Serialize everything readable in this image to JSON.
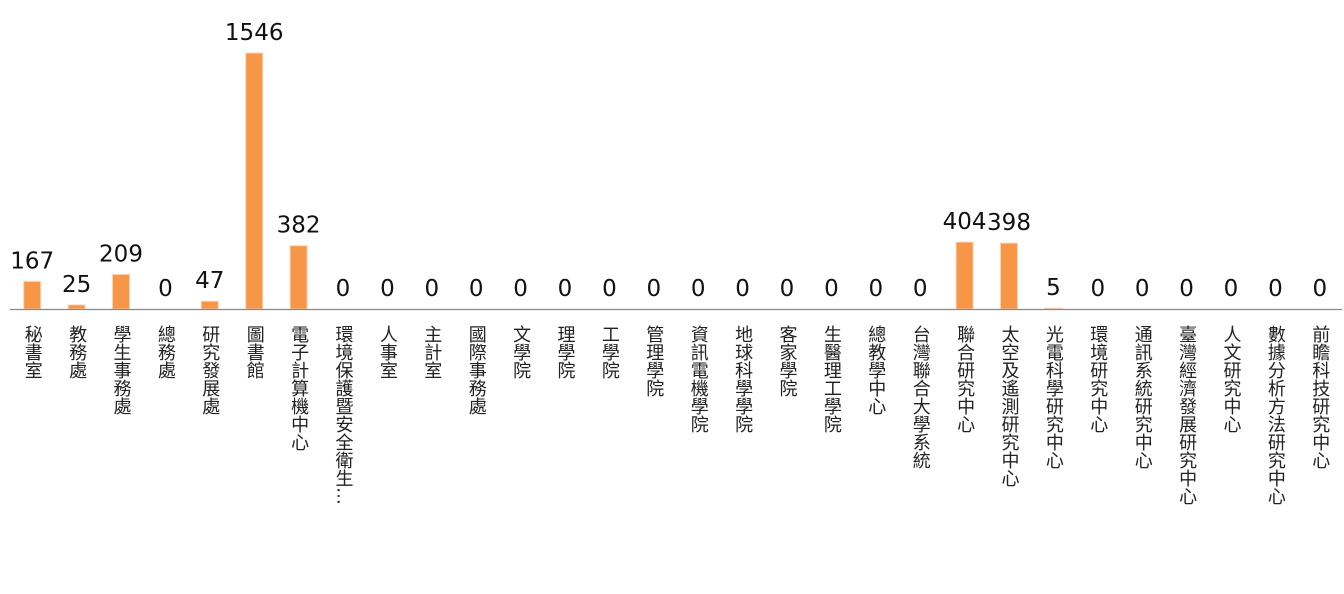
{
  "chart_data": {
    "type": "bar",
    "title": "",
    "xlabel": "",
    "ylabel": "",
    "ylim": [
      0,
      1546
    ],
    "grid": false,
    "legend": "none",
    "bar_color": "#F79646",
    "categories": [
      "秘書室",
      "教務處",
      "學生事務處",
      "總務處",
      "研究發展處",
      "圖書館",
      "電子計算機中心",
      "環境保護暨安全衛生…",
      "人事室",
      "主計室",
      "國際事務處",
      "文學院",
      "理學院",
      "工學院",
      "管理學院",
      "資訊電機學院",
      "地球科學學院",
      "客家學院",
      "生醫理工學院",
      "總教學中心",
      "台灣聯合大學系統",
      "聯合研究中心",
      "太空及遙測研究中心",
      "光電科學研究中心",
      "環境研究中心",
      "通訊系統研究中心",
      "臺灣經濟發展研究中心",
      "人文研究中心",
      "數據分析方法研究中心",
      "前瞻科技研究中心"
    ],
    "values": [
      167,
      25,
      209,
      0,
      47,
      1546,
      382,
      0,
      0,
      0,
      0,
      0,
      0,
      0,
      0,
      0,
      0,
      0,
      0,
      0,
      0,
      404,
      398,
      5,
      0,
      0,
      0,
      0,
      0,
      0
    ],
    "value_labels": [
      "167",
      "25",
      "209",
      "0",
      "47",
      "1546",
      "382",
      "0",
      "0",
      "0",
      "0",
      "0",
      "0",
      "0",
      "0",
      "0",
      "0",
      "0",
      "0",
      "0",
      "0",
      "404",
      "398",
      "5",
      "0",
      "0",
      "0",
      "0",
      "0",
      "0"
    ]
  }
}
